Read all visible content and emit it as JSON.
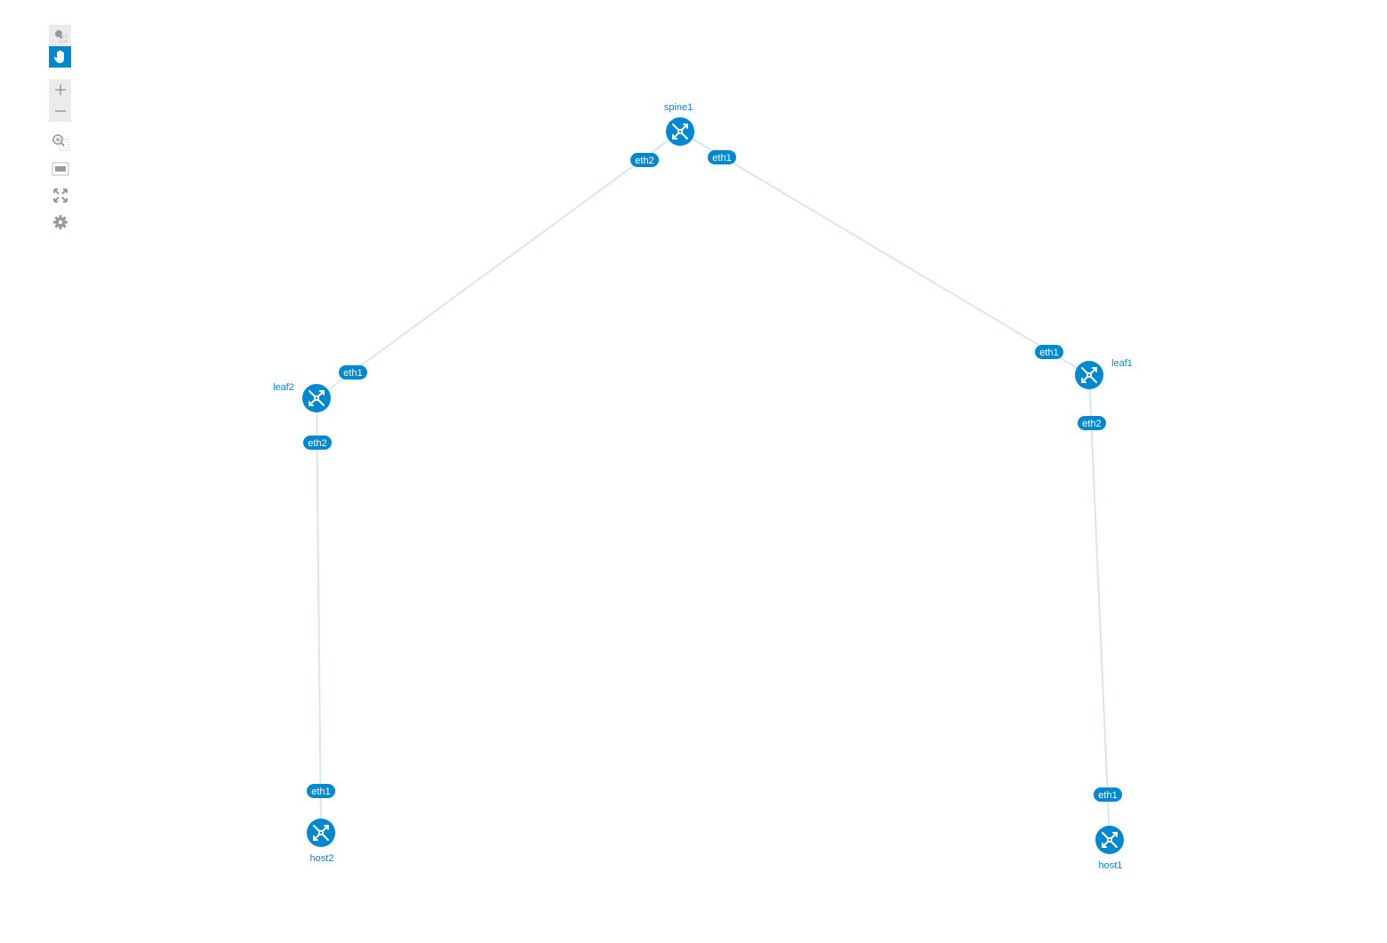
{
  "toolbar": {
    "tools": [
      {
        "name": "select-mode-icon",
        "active": false
      },
      {
        "name": "pan-mode-icon",
        "active": true
      },
      {
        "name": "zoom-in-icon"
      },
      {
        "name": "zoom-out-icon"
      },
      {
        "name": "zoom-by-selection-icon"
      },
      {
        "name": "fit-stage-icon"
      },
      {
        "name": "fullscreen-icon"
      },
      {
        "name": "settings-gear-icon"
      }
    ]
  },
  "colors": {
    "node": "#0288d1",
    "link": "#d6e6f7",
    "toolbar_active": "#0288d1"
  },
  "nodes": [
    {
      "id": "spine1",
      "label": "spine1",
      "icon": "router-icon"
    },
    {
      "id": "leaf2",
      "label": "leaf2",
      "icon": "router-icon"
    },
    {
      "id": "leaf1",
      "label": "leaf1",
      "icon": "router-icon"
    },
    {
      "id": "host2",
      "label": "host2",
      "icon": "router-icon"
    },
    {
      "id": "host1",
      "label": "host1",
      "icon": "router-icon"
    }
  ],
  "links": [
    {
      "source": "spine1",
      "target": "leaf2",
      "source_port": "eth2",
      "target_port": "eth1"
    },
    {
      "source": "spine1",
      "target": "leaf1",
      "source_port": "eth1",
      "target_port": "eth1"
    },
    {
      "source": "leaf2",
      "target": "host2",
      "source_port": "eth2",
      "target_port": "eth1"
    },
    {
      "source": "leaf1",
      "target": "host1",
      "source_port": "eth2",
      "target_port": "eth1"
    }
  ]
}
